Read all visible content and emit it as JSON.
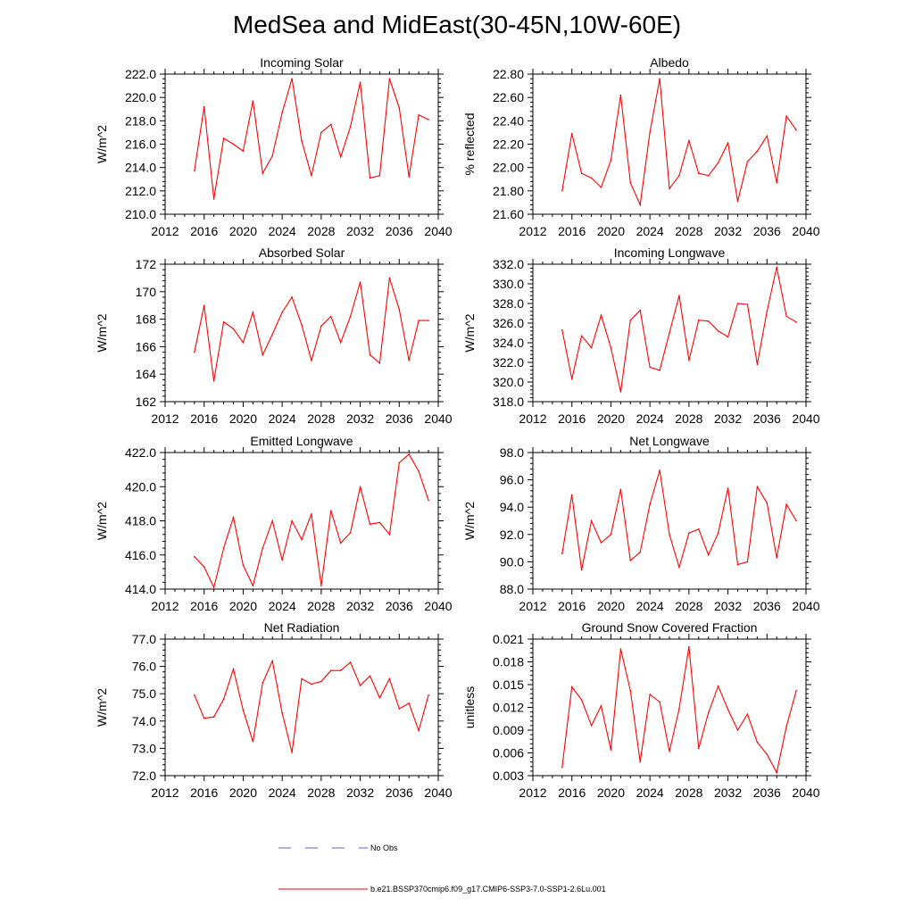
{
  "figure": {
    "title": "MedSea and MidEast(30-45N,10W-60E)",
    "line_color": "#ff0000",
    "legend": [
      {
        "label": "No Obs",
        "color": "#5566cc",
        "style": "dashed"
      },
      {
        "label": "b.e21.BSSP370cmip6.f09_g17.CMIP6-SSP3-7.0-SSP1-2.6Lu.001",
        "color": "#ff0000",
        "style": "solid"
      }
    ]
  },
  "chart_data": [
    {
      "type": "line",
      "title": "Incoming Solar",
      "ylabel": "W/m^2",
      "x": [
        2015,
        2016,
        2017,
        2018,
        2019,
        2020,
        2021,
        2022,
        2023,
        2024,
        2025,
        2026,
        2027,
        2028,
        2029,
        2030,
        2031,
        2032,
        2033,
        2034,
        2035,
        2036,
        2037,
        2038,
        2039
      ],
      "values": [
        213.7,
        219.2,
        211.3,
        216.5,
        216.0,
        215.4,
        219.7,
        213.5,
        215.0,
        218.7,
        221.6,
        216.3,
        213.3,
        217.0,
        217.7,
        214.9,
        217.5,
        221.3,
        213.1,
        213.3,
        221.6,
        219.1,
        213.2,
        218.5,
        218.1
      ],
      "xlim": [
        2012,
        2040
      ],
      "ylim": [
        210,
        222
      ],
      "xticks": [
        "2012",
        "2016",
        "2020",
        "2024",
        "2028",
        "2032",
        "2036",
        "2040"
      ],
      "yticks": [
        "210.0",
        "212.0",
        "214.0",
        "216.0",
        "218.0",
        "220.0",
        "222.0"
      ]
    },
    {
      "type": "line",
      "title": "Albedo",
      "ylabel": "% reflected",
      "x": [
        2015,
        2016,
        2017,
        2018,
        2019,
        2020,
        2021,
        2022,
        2023,
        2024,
        2025,
        2026,
        2027,
        2028,
        2029,
        2030,
        2031,
        2032,
        2033,
        2034,
        2035,
        2036,
        2037,
        2038,
        2039
      ],
      "values": [
        21.8,
        22.29,
        21.95,
        21.91,
        21.83,
        22.06,
        22.62,
        21.87,
        21.68,
        22.3,
        22.76,
        21.82,
        21.93,
        22.23,
        21.95,
        21.93,
        22.04,
        22.21,
        21.71,
        22.05,
        22.14,
        22.27,
        21.87,
        22.44,
        22.32
      ],
      "xlim": [
        2012,
        2040
      ],
      "ylim": [
        21.6,
        22.8
      ],
      "xticks": [
        "2012",
        "2016",
        "2020",
        "2024",
        "2028",
        "2032",
        "2036",
        "2040"
      ],
      "yticks": [
        "21.60",
        "21.80",
        "22.00",
        "22.20",
        "22.40",
        "22.60",
        "22.80"
      ]
    },
    {
      "type": "line",
      "title": "Absorbed Solar",
      "ylabel": "W/m^2",
      "x": [
        2015,
        2016,
        2017,
        2018,
        2019,
        2020,
        2021,
        2022,
        2023,
        2024,
        2025,
        2026,
        2027,
        2028,
        2029,
        2030,
        2031,
        2032,
        2033,
        2034,
        2035,
        2036,
        2037,
        2038,
        2039
      ],
      "values": [
        165.6,
        169.0,
        163.5,
        167.8,
        167.3,
        166.3,
        168.5,
        165.4,
        166.9,
        168.5,
        169.6,
        167.6,
        165.0,
        167.5,
        168.2,
        166.3,
        168.2,
        170.7,
        165.4,
        164.8,
        171.0,
        168.7,
        165.0,
        167.9,
        167.9
      ],
      "xlim": [
        2012,
        2040
      ],
      "ylim": [
        162,
        172
      ],
      "xticks": [
        "2012",
        "2016",
        "2020",
        "2024",
        "2028",
        "2032",
        "2036",
        "2040"
      ],
      "yticks": [
        "162",
        "164",
        "166",
        "168",
        "170",
        "172"
      ]
    },
    {
      "type": "line",
      "title": "Incoming Longwave",
      "ylabel": "W/m^2",
      "x": [
        2015,
        2016,
        2017,
        2018,
        2019,
        2020,
        2021,
        2022,
        2023,
        2024,
        2025,
        2026,
        2027,
        2028,
        2029,
        2030,
        2031,
        2032,
        2033,
        2034,
        2035,
        2036,
        2037,
        2038,
        2039
      ],
      "values": [
        325.3,
        320.3,
        324.7,
        323.5,
        326.8,
        323.5,
        319.0,
        326.3,
        327.3,
        321.5,
        321.2,
        325.0,
        328.8,
        322.2,
        326.3,
        326.2,
        325.2,
        324.6,
        328.0,
        327.9,
        321.8,
        327.2,
        331.7,
        326.7,
        326.1
      ],
      "xlim": [
        2012,
        2040
      ],
      "ylim": [
        318,
        332
      ],
      "xticks": [
        "2012",
        "2016",
        "2020",
        "2024",
        "2028",
        "2032",
        "2036",
        "2040"
      ],
      "yticks": [
        "318.0",
        "320.0",
        "322.0",
        "324.0",
        "326.0",
        "328.0",
        "330.0",
        "332.0"
      ]
    },
    {
      "type": "line",
      "title": "Emitted Longwave",
      "ylabel": "W/m^2",
      "x": [
        2015,
        2016,
        2017,
        2018,
        2019,
        2020,
        2021,
        2022,
        2023,
        2024,
        2025,
        2026,
        2027,
        2028,
        2029,
        2030,
        2031,
        2032,
        2033,
        2034,
        2035,
        2036,
        2037,
        2038,
        2039
      ],
      "values": [
        415.9,
        415.3,
        414.1,
        416.4,
        418.2,
        415.4,
        414.2,
        416.4,
        418.0,
        415.7,
        418.0,
        416.9,
        418.4,
        414.2,
        418.6,
        416.7,
        417.3,
        420.0,
        417.8,
        417.9,
        417.2,
        421.4,
        421.9,
        420.9,
        419.2
      ],
      "xlim": [
        2012,
        2040
      ],
      "ylim": [
        414,
        422
      ],
      "xticks": [
        "2012",
        "2016",
        "2020",
        "2024",
        "2028",
        "2032",
        "2036",
        "2040"
      ],
      "yticks": [
        "414.0",
        "416.0",
        "418.0",
        "420.0",
        "422.0"
      ]
    },
    {
      "type": "line",
      "title": "Net Longwave",
      "ylabel": "W/m^2",
      "x": [
        2015,
        2016,
        2017,
        2018,
        2019,
        2020,
        2021,
        2022,
        2023,
        2024,
        2025,
        2026,
        2027,
        2028,
        2029,
        2030,
        2031,
        2032,
        2033,
        2034,
        2035,
        2036,
        2037,
        2038,
        2039
      ],
      "values": [
        90.6,
        94.9,
        89.4,
        93.0,
        91.4,
        92.0,
        95.3,
        90.1,
        90.7,
        94.2,
        96.7,
        92.0,
        89.6,
        92.1,
        92.4,
        90.5,
        92.1,
        95.4,
        89.8,
        90.0,
        95.5,
        94.3,
        90.3,
        94.2,
        93.0
      ],
      "xlim": [
        2012,
        2040
      ],
      "ylim": [
        88,
        98
      ],
      "xticks": [
        "2012",
        "2016",
        "2020",
        "2024",
        "2028",
        "2032",
        "2036",
        "2040"
      ],
      "yticks": [
        "88.0",
        "90.0",
        "92.0",
        "94.0",
        "96.0",
        "98.0"
      ]
    },
    {
      "type": "line",
      "title": "Net Radiation",
      "ylabel": "W/m^2",
      "x": [
        2015,
        2016,
        2017,
        2018,
        2019,
        2020,
        2021,
        2022,
        2023,
        2024,
        2025,
        2026,
        2027,
        2028,
        2029,
        2030,
        2031,
        2032,
        2033,
        2034,
        2035,
        2036,
        2037,
        2038,
        2039
      ],
      "values": [
        74.95,
        74.1,
        74.15,
        74.8,
        75.9,
        74.4,
        73.25,
        75.4,
        76.2,
        74.3,
        72.85,
        75.55,
        75.35,
        75.45,
        75.85,
        75.85,
        76.15,
        75.3,
        75.65,
        74.85,
        75.55,
        74.45,
        74.65,
        73.65,
        74.95
      ],
      "xlim": [
        2012,
        2040
      ],
      "ylim": [
        72,
        77
      ],
      "xticks": [
        "2012",
        "2016",
        "2020",
        "2024",
        "2028",
        "2032",
        "2036",
        "2040"
      ],
      "yticks": [
        "72.0",
        "73.0",
        "74.0",
        "75.0",
        "76.0",
        "77.0"
      ]
    },
    {
      "type": "line",
      "title": "Ground Snow Covered Fraction",
      "ylabel": "unitless",
      "x": [
        2015,
        2016,
        2017,
        2018,
        2019,
        2020,
        2021,
        2022,
        2023,
        2024,
        2025,
        2026,
        2027,
        2028,
        2029,
        2030,
        2031,
        2032,
        2033,
        2034,
        2035,
        2036,
        2037,
        2038,
        2039
      ],
      "values": [
        0.0041,
        0.0147,
        0.013,
        0.0096,
        0.0122,
        0.0064,
        0.0197,
        0.0142,
        0.0048,
        0.0137,
        0.0127,
        0.0062,
        0.0118,
        0.02,
        0.0066,
        0.0113,
        0.0148,
        0.0117,
        0.009,
        0.0111,
        0.0074,
        0.0058,
        0.0034,
        0.0095,
        0.0142
      ],
      "xlim": [
        2012,
        2040
      ],
      "ylim": [
        0.003,
        0.021
      ],
      "xticks": [
        "2012",
        "2016",
        "2020",
        "2024",
        "2028",
        "2032",
        "2036",
        "2040"
      ],
      "yticks": [
        "0.003",
        "0.006",
        "0.009",
        "0.012",
        "0.015",
        "0.018",
        "0.021"
      ]
    }
  ]
}
